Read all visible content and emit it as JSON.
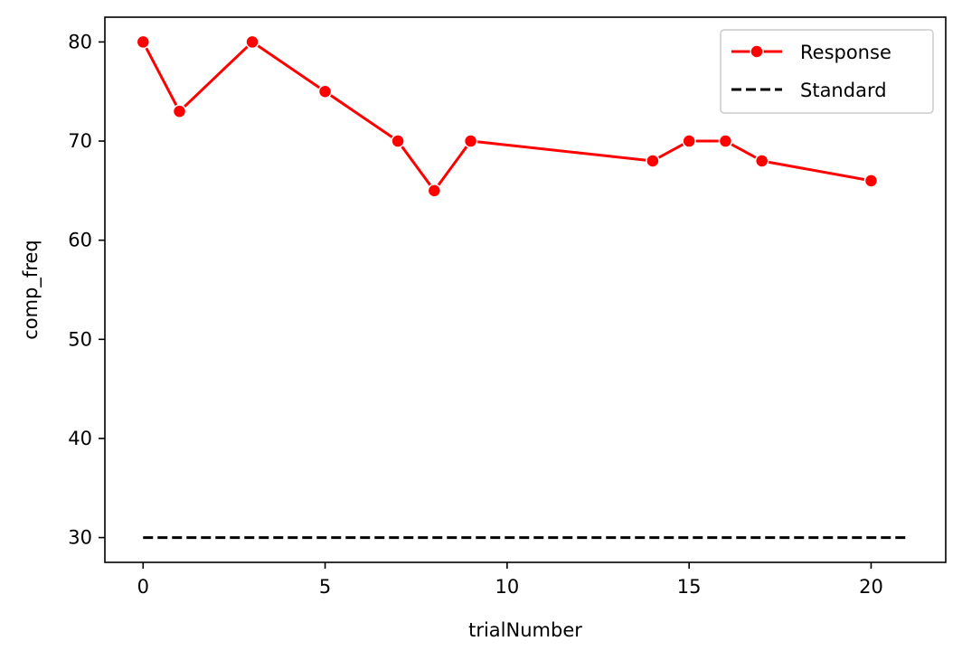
{
  "chart_data": {
    "type": "line",
    "title": "",
    "xlabel": "trialNumber",
    "ylabel": "comp_freq",
    "xlim": [
      -1.05,
      22.05
    ],
    "ylim": [
      27.5,
      82.5
    ],
    "xticks": [
      0,
      5,
      10,
      15,
      20
    ],
    "yticks": [
      30,
      40,
      50,
      60,
      70,
      80
    ],
    "xtick_labels": [
      "0",
      "5",
      "10",
      "15",
      "20"
    ],
    "ytick_labels": [
      "30",
      "40",
      "50",
      "60",
      "70",
      "80"
    ],
    "grid": false,
    "legend_position": "top-right",
    "series": [
      {
        "name": "Response",
        "color": "#ff0000",
        "style": "solid",
        "marker": "circle",
        "x": [
          0,
          1,
          3,
          5,
          7,
          8,
          9,
          14,
          15,
          16,
          17,
          20
        ],
        "y": [
          80,
          73,
          80,
          75,
          70,
          65,
          70,
          68,
          70,
          70,
          68,
          66
        ]
      },
      {
        "name": "Standard",
        "color": "#000000",
        "style": "dashed",
        "marker": "none",
        "x": [
          0,
          21
        ],
        "y": [
          30,
          30
        ]
      }
    ]
  }
}
